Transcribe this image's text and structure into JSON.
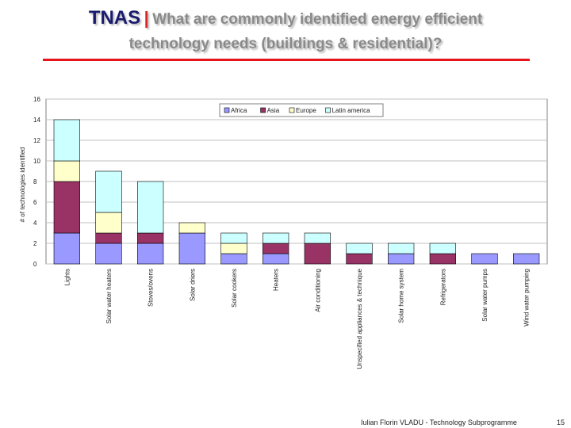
{
  "slide": {
    "title_lead": "TNAS",
    "title_sep": "|",
    "title_line1": "What are commonly identified energy efficient",
    "title_line2": "technology needs (buildings & residential)?",
    "footer": "Iulian Florin VLADU - Technology Subprogramme",
    "page_number": "15"
  },
  "colors": {
    "Africa": "#9999ff",
    "Asia": "#993366",
    "Europe": "#ffffcc",
    "Latin america": "#ccffff",
    "accent_rule": "#e8141b"
  },
  "chart_data": {
    "type": "bar",
    "stacked": true,
    "title": "",
    "xlabel": "",
    "ylabel": "# of technologies identified",
    "ylim": [
      0,
      16
    ],
    "yticks": [
      "0",
      "2",
      "4",
      "6",
      "8",
      "10",
      "12",
      "14",
      "16"
    ],
    "grid": true,
    "legend_position": "top-right",
    "categories": [
      "Lights",
      "Solar water heaters",
      "Stoves/ovens",
      "Solar driers",
      "Solar cookers",
      "Heaters",
      "Air conditioning",
      "Unspecified appliances & technique",
      "Solar home system",
      "Refrigerators",
      "Solar water pumps",
      "Wind water pumping"
    ],
    "series": [
      {
        "name": "Africa",
        "values": [
          3,
          2,
          2,
          3,
          1,
          1,
          0,
          0,
          1,
          0,
          1,
          1
        ]
      },
      {
        "name": "Asia",
        "values": [
          5,
          1,
          1,
          0,
          0,
          1,
          2,
          1,
          0,
          1,
          0,
          0
        ]
      },
      {
        "name": "Europe",
        "values": [
          2,
          2,
          0,
          1,
          1,
          0,
          0,
          0,
          0,
          0,
          0,
          0
        ]
      },
      {
        "name": "Latin america",
        "values": [
          4,
          4,
          5,
          0,
          1,
          1,
          1,
          1,
          1,
          1,
          0,
          0
        ]
      }
    ]
  }
}
